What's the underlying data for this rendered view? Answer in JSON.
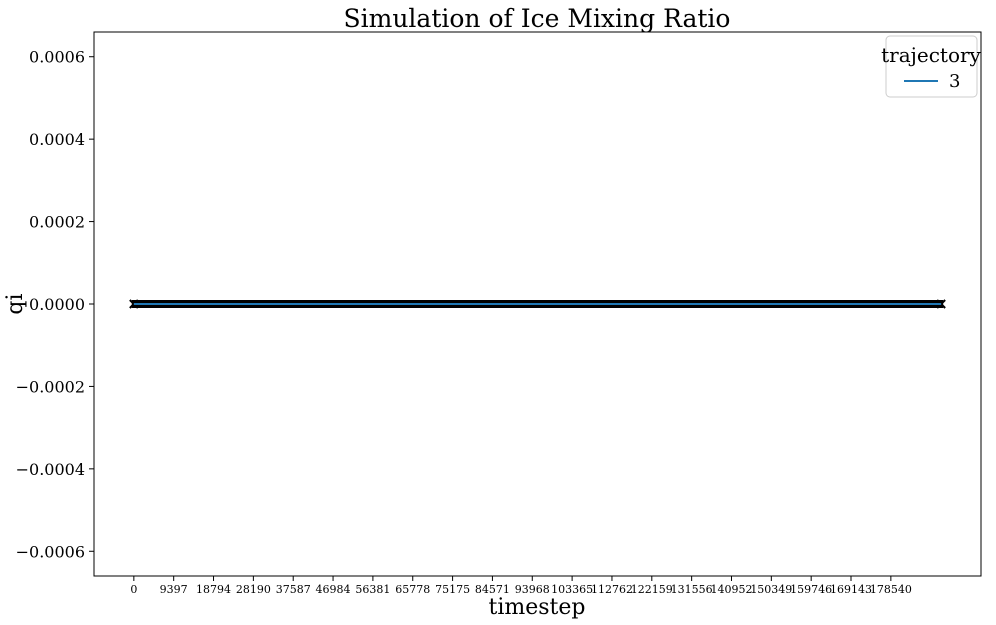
{
  "chart_data": {
    "type": "line",
    "title": "Simulation of Ice Mixing Ratio",
    "xlabel": "timestep",
    "ylabel": "qi",
    "xlim": [
      -9397,
      199800
    ],
    "ylim": [
      -0.00066,
      0.00066
    ],
    "x_ticks": [
      0,
      9397,
      18794,
      28190,
      37587,
      46984,
      56381,
      65778,
      75175,
      84571,
      93968,
      103365,
      112762,
      122159,
      131556,
      140952,
      150349,
      159746,
      169143,
      178540
    ],
    "y_ticks": [
      0.0006,
      0.0004,
      0.0002,
      0.0,
      -0.0002,
      -0.0004,
      -0.0006
    ],
    "y_tick_labels": [
      "0.0006",
      "0.0004",
      "0.0002",
      "0.0000",
      "−0.0002",
      "−0.0004",
      "−0.0006"
    ],
    "grid": false,
    "legend": {
      "title": "trajectory",
      "position": "top-right"
    },
    "series": [
      {
        "name": "3",
        "color": "#1f77b4",
        "x": [
          0,
          190400
        ],
        "y": [
          0.0,
          0.0
        ]
      }
    ],
    "markers": {
      "symbol": "x",
      "color": "#000000",
      "x_range": [
        0,
        190400
      ],
      "y": 0.0
    }
  }
}
